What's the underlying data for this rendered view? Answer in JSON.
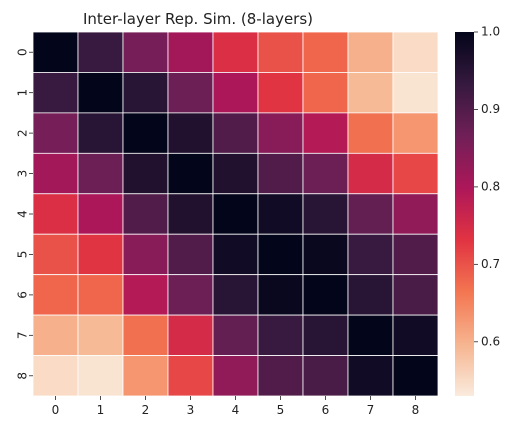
{
  "chart_data": {
    "type": "heatmap",
    "title": "Inter-layer Rep. Sim. (8-layers)",
    "xlabel": "",
    "ylabel": "",
    "x_categories": [
      "0",
      "1",
      "2",
      "3",
      "4",
      "5",
      "6",
      "7",
      "8"
    ],
    "y_categories": [
      "0",
      "1",
      "2",
      "3",
      "4",
      "5",
      "6",
      "7",
      "8"
    ],
    "values": [
      [
        1.0,
        0.93,
        0.86,
        0.81,
        0.74,
        0.7,
        0.68,
        0.6,
        0.55
      ],
      [
        0.93,
        1.0,
        0.95,
        0.87,
        0.8,
        0.73,
        0.68,
        0.59,
        0.54
      ],
      [
        0.86,
        0.95,
        1.0,
        0.96,
        0.9,
        0.84,
        0.79,
        0.67,
        0.63
      ],
      [
        0.81,
        0.87,
        0.96,
        1.0,
        0.96,
        0.9,
        0.87,
        0.75,
        0.71
      ],
      [
        0.74,
        0.8,
        0.9,
        0.96,
        1.0,
        0.98,
        0.95,
        0.88,
        0.83
      ],
      [
        0.7,
        0.73,
        0.84,
        0.9,
        0.98,
        1.0,
        0.99,
        0.93,
        0.9
      ],
      [
        0.68,
        0.68,
        0.79,
        0.87,
        0.95,
        0.99,
        1.0,
        0.95,
        0.91
      ],
      [
        0.6,
        0.59,
        0.67,
        0.75,
        0.88,
        0.93,
        0.95,
        1.0,
        0.98
      ],
      [
        0.55,
        0.54,
        0.63,
        0.71,
        0.83,
        0.9,
        0.91,
        0.98,
        1.0
      ]
    ],
    "colorbar": {
      "min": 0.53,
      "max": 1.0,
      "ticks": [
        0.6,
        0.7,
        0.8,
        0.9,
        1.0
      ],
      "tick_labels": [
        "0.6",
        "0.7",
        "0.8",
        "0.9",
        "1.0"
      ],
      "colormap": "rocket_r",
      "colors": [
        "#faebdd",
        "#f6b48f",
        "#f37651",
        "#e13342",
        "#ad1759",
        "#701f57",
        "#35193e",
        "#03051a"
      ]
    },
    "grid": false,
    "cell_borders": "white",
    "legend": "colorbar-right"
  }
}
